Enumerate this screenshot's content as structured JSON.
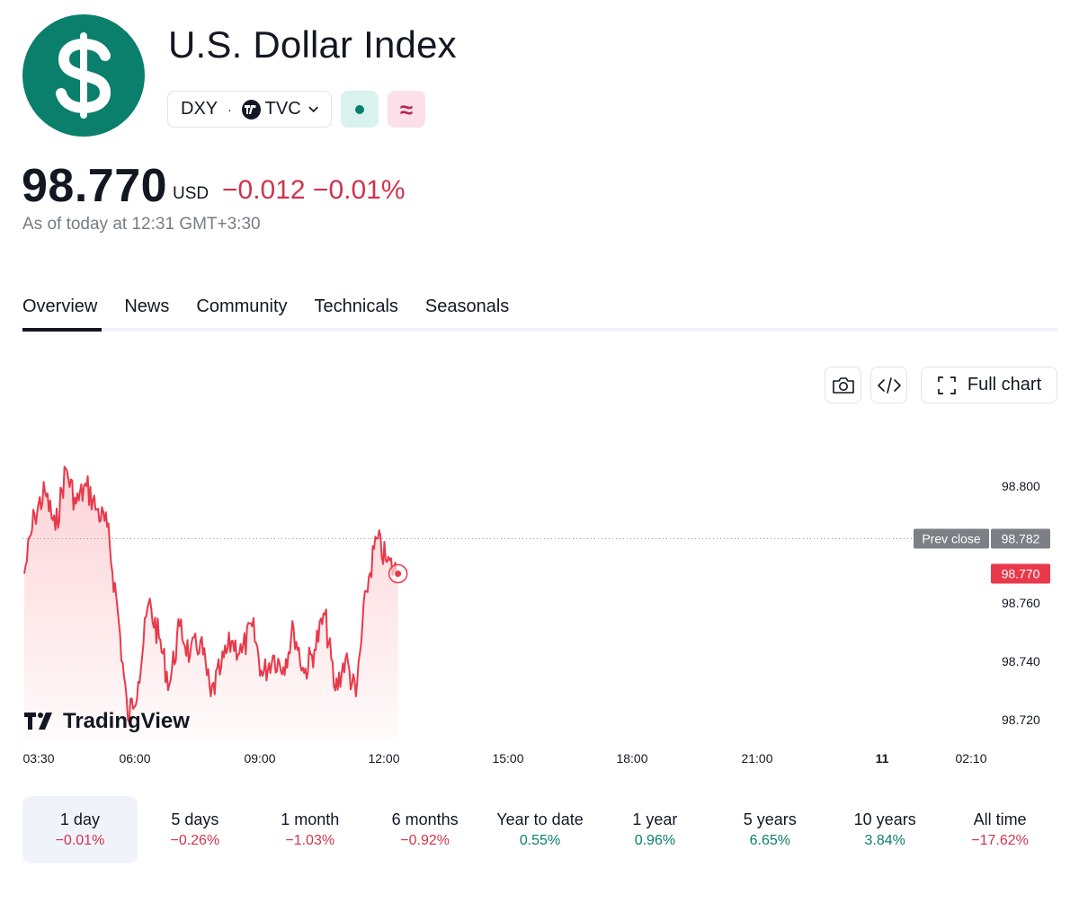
{
  "header": {
    "title": "U.S. Dollar Index",
    "symbol": "DXY",
    "separator": "·",
    "exchange": "TVC",
    "logo_icon": "dollar-icon",
    "brand_color": "#0a7f6b"
  },
  "quote": {
    "price": "98.770",
    "currency": "USD",
    "change": "−0.012 −0.01%",
    "as_of": "As of today at 12:31 GMT+3:30",
    "negative_color": "#d0344d",
    "positive_color": "#0a7f6b"
  },
  "tabs": [
    {
      "label": "Overview",
      "active": true
    },
    {
      "label": "News"
    },
    {
      "label": "Community"
    },
    {
      "label": "Technicals"
    },
    {
      "label": "Seasonals"
    }
  ],
  "toolbar": {
    "full_chart_label": "Full chart"
  },
  "chart_data": {
    "type": "area",
    "watermark": "TradingView",
    "x_tick_labels": [
      "03:30",
      "06:00",
      "09:00",
      "12:00",
      "15:00",
      "18:00",
      "21:00",
      "11",
      "02:10"
    ],
    "y_tick_labels": [
      "98.800",
      "98.760",
      "98.740",
      "98.720"
    ],
    "prev_close_label": "Prev close",
    "prev_close": "98.782",
    "last_price": "98.770",
    "line_color": "#e8394a",
    "series": [
      {
        "x": [
          "03:30",
          "03:45",
          "04:00",
          "04:15",
          "04:30",
          "04:45",
          "05:00",
          "05:15",
          "05:30",
          "05:45",
          "06:00",
          "06:15",
          "06:30",
          "06:45",
          "07:00",
          "07:15",
          "07:30",
          "07:45",
          "08:00",
          "08:15",
          "08:30",
          "08:45",
          "09:00",
          "09:15",
          "09:30",
          "09:45",
          "10:00",
          "10:15",
          "10:30",
          "10:45",
          "11:00",
          "11:15",
          "11:30",
          "11:45",
          "12:00",
          "12:15",
          "12:31"
        ],
        "values": [
          98.77,
          98.79,
          98.798,
          98.785,
          98.806,
          98.794,
          98.8,
          98.792,
          98.786,
          98.758,
          98.72,
          98.733,
          98.76,
          98.748,
          98.732,
          98.752,
          98.742,
          98.747,
          98.728,
          98.738,
          98.747,
          98.743,
          98.752,
          98.735,
          98.742,
          98.738,
          98.751,
          98.736,
          98.744,
          98.756,
          98.73,
          98.741,
          98.728,
          98.764,
          98.782,
          98.774,
          98.77
        ]
      }
    ]
  },
  "periods": [
    {
      "label": "1 day",
      "value": "−0.01%",
      "trend": "neg",
      "active": true
    },
    {
      "label": "5 days",
      "value": "−0.26%",
      "trend": "neg"
    },
    {
      "label": "1 month",
      "value": "−1.03%",
      "trend": "neg"
    },
    {
      "label": "6 months",
      "value": "−0.92%",
      "trend": "neg"
    },
    {
      "label": "Year to date",
      "value": "0.55%",
      "trend": "pos"
    },
    {
      "label": "1 year",
      "value": "0.96%",
      "trend": "pos"
    },
    {
      "label": "5 years",
      "value": "6.65%",
      "trend": "pos"
    },
    {
      "label": "10 years",
      "value": "3.84%",
      "trend": "pos"
    },
    {
      "label": "All time",
      "value": "−17.62%",
      "trend": "neg"
    }
  ]
}
